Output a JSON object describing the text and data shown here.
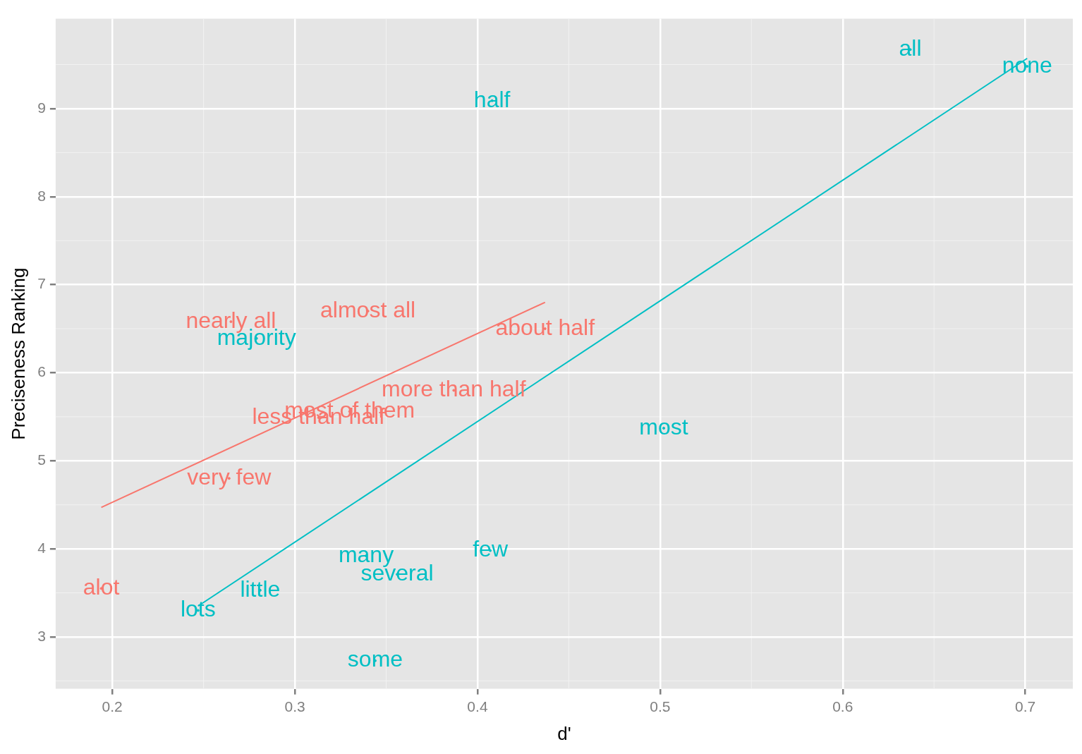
{
  "chart_data": {
    "type": "scatter",
    "xlabel": "d'",
    "ylabel": "Preciseness Ranking",
    "xlim": [
      0.169,
      0.726
    ],
    "ylim": [
      2.41,
      10.02
    ],
    "xticks": [
      0.2,
      0.3,
      0.4,
      0.5,
      0.6,
      0.7
    ],
    "yticks": [
      3,
      4,
      5,
      6,
      7,
      8,
      9
    ],
    "grid": true,
    "series": [
      {
        "color": "#f8766d",
        "x": [
          0.194,
          0.264,
          0.265,
          0.34,
          0.437,
          0.387,
          0.33,
          0.313
        ],
        "values": [
          3.55,
          4.8,
          6.58,
          6.7,
          6.5,
          5.8,
          5.56,
          5.49
        ],
        "value_labels": [
          "alot",
          "very few",
          "nearly all",
          "almost all",
          "about half",
          "more than half",
          "most of them",
          "less than half"
        ]
      },
      {
        "color": "#00bfc4",
        "x": [
          0.637,
          0.701,
          0.408,
          0.279,
          0.502,
          0.407,
          0.339,
          0.356,
          0.281,
          0.247,
          0.344
        ],
        "values": [
          9.67,
          9.48,
          9.09,
          6.39,
          5.37,
          3.98,
          3.92,
          3.71,
          3.53,
          3.3,
          2.73
        ],
        "value_labels": [
          "all",
          "none",
          "half",
          "majority",
          "most",
          "few",
          "many",
          "several",
          "little",
          "lots",
          "some"
        ]
      },
      {
        "type": "line",
        "color": "#f8766d",
        "x": [
          0.194,
          0.437
        ],
        "values": [
          4.47,
          6.8
        ]
      },
      {
        "type": "line",
        "color": "#00bfc4",
        "x": [
          0.247,
          0.701
        ],
        "values": [
          3.35,
          9.57
        ]
      }
    ]
  }
}
